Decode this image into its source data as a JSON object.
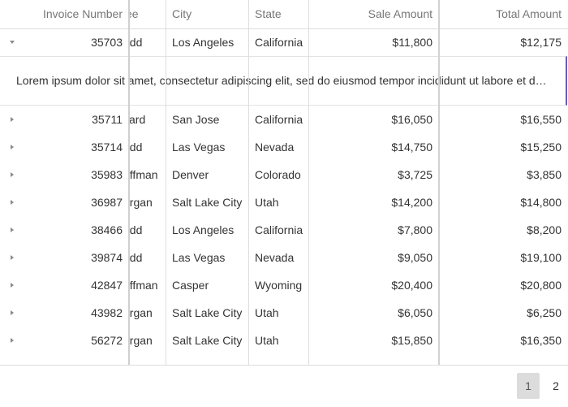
{
  "columns": {
    "invoice_number": "Invoice Number",
    "employee_partial": "ee",
    "city": "City",
    "state": "State",
    "sale_amount": "Sale Amount",
    "total_amount": "Total Amount"
  },
  "expanded_detail": "Lorem ipsum dolor sit amet, consectetur adipiscing elit, sed do eiusmod tempor incididunt ut labore et dolore magna aliqua.",
  "rows": [
    {
      "invoice": "35703",
      "employee": "udd",
      "city": "Los Angeles",
      "state": "California",
      "sale": "$11,800",
      "total": "$12,175",
      "expanded": true
    },
    {
      "invoice": "35711",
      "employee": "kard",
      "city": "San Jose",
      "state": "California",
      "sale": "$16,050",
      "total": "$16,550"
    },
    {
      "invoice": "35714",
      "employee": "udd",
      "city": "Las Vegas",
      "state": "Nevada",
      "sale": "$14,750",
      "total": "$15,250"
    },
    {
      "invoice": "35983",
      "employee": "offman",
      "city": "Denver",
      "state": "Colorado",
      "sale": "$3,725",
      "total": "$3,850"
    },
    {
      "invoice": "36987",
      "employee": "organ",
      "city": "Salt Lake City",
      "state": "Utah",
      "sale": "$14,200",
      "total": "$14,800"
    },
    {
      "invoice": "38466",
      "employee": "udd",
      "city": "Los Angeles",
      "state": "California",
      "sale": "$7,800",
      "total": "$8,200"
    },
    {
      "invoice": "39874",
      "employee": "udd",
      "city": "Las Vegas",
      "state": "Nevada",
      "sale": "$9,050",
      "total": "$19,100"
    },
    {
      "invoice": "42847",
      "employee": "offman",
      "city": "Casper",
      "state": "Wyoming",
      "sale": "$20,400",
      "total": "$20,800"
    },
    {
      "invoice": "43982",
      "employee": "organ",
      "city": "Salt Lake City",
      "state": "Utah",
      "sale": "$6,050",
      "total": "$6,250"
    },
    {
      "invoice": "56272",
      "employee": "organ",
      "city": "Salt Lake City",
      "state": "Utah",
      "sale": "$15,850",
      "total": "$16,350"
    }
  ],
  "pager": {
    "pages": [
      "1",
      "2"
    ],
    "current": "1"
  }
}
